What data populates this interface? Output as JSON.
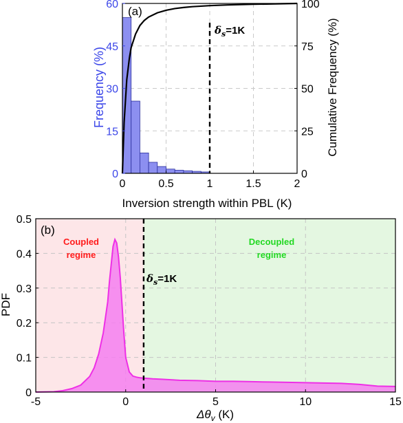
{
  "colors": {
    "bar_fill": "#8c8ff0",
    "bar_edge": "#2a2f9c",
    "cumulative_line": "#000000",
    "left_axis_blue": "#3b46e8",
    "pdf_line": "#ee2fe6",
    "pdf_fill": "#f57ff0",
    "coupled_bg": "#fde6e8",
    "decoupled_bg": "#e4f7e1",
    "threshold_line": "#000000"
  },
  "chart_data": [
    {
      "type": "bar",
      "panel_label": "(a)",
      "xlabel": "Inversion strength within PBL (K)",
      "ylabel": "Frequency (%)",
      "y2label": "Cumulative Frequency (%)",
      "xlim": [
        0,
        2
      ],
      "ylim": [
        0,
        60
      ],
      "y2lim": [
        0,
        100
      ],
      "xticks": [
        "0",
        "0.5",
        "1",
        "1.5",
        "2"
      ],
      "xtick_values": [
        0,
        0.5,
        1,
        1.5,
        2
      ],
      "yticks": [
        "0",
        "15",
        "30",
        "45",
        "60"
      ],
      "ytick_values": [
        0,
        15,
        30,
        45,
        60
      ],
      "y2ticks": [
        "0",
        "25",
        "50",
        "75",
        "100"
      ],
      "y2tick_values": [
        0,
        25,
        50,
        75,
        100
      ],
      "grid": true,
      "bin_edges": [
        0,
        0.1,
        0.2,
        0.3,
        0.4,
        0.5,
        0.6,
        0.7,
        0.8,
        0.9,
        1.0
      ],
      "values": [
        55,
        25.5,
        7.2,
        3.9,
        2.4,
        1.5,
        1.1,
        0.9,
        0.7,
        0.5
      ],
      "cumulative": {
        "x": [
          0,
          0.02,
          0.05,
          0.08,
          0.1,
          0.15,
          0.2,
          0.25,
          0.3,
          0.4,
          0.5,
          0.6,
          0.7,
          0.8,
          1.0,
          1.2,
          1.5,
          1.8,
          2.0
        ],
        "y": [
          0,
          30,
          55,
          68,
          74,
          82,
          87,
          90,
          92,
          94.5,
          96,
          97,
          97.6,
          98.1,
          98.7,
          99.1,
          99.5,
          99.8,
          100
        ]
      },
      "threshold": {
        "x": 1,
        "label_symbol": "δ",
        "label_sub": "s",
        "label_rest": "=1K"
      }
    },
    {
      "type": "area",
      "panel_label": "(b)",
      "xlabel_symbol": "Δθ",
      "xlabel_sub": "v",
      "xlabel_rest": " (K)",
      "ylabel": "PDF",
      "xlim": [
        -5,
        15
      ],
      "ylim": [
        0,
        0.5
      ],
      "xticks": [
        "-5",
        "0",
        "5",
        "10",
        "15"
      ],
      "xtick_values": [
        -5,
        0,
        5,
        10,
        15
      ],
      "yticks": [
        "0",
        "0.1",
        "0.2",
        "0.3",
        "0.4",
        "0.5"
      ],
      "ytick_values": [
        0,
        0.1,
        0.2,
        0.3,
        0.4,
        0.5
      ],
      "grid": true,
      "x": [
        -5,
        -4,
        -3.5,
        -3,
        -2.5,
        -2,
        -1.75,
        -1.5,
        -1.25,
        -1,
        -0.9,
        -0.8,
        -0.7,
        -0.6,
        -0.5,
        -0.4,
        -0.3,
        -0.2,
        -0.1,
        0,
        0.2,
        0.4,
        0.6,
        0.8,
        1.0,
        1.5,
        2,
        3,
        4,
        5,
        6,
        7,
        8,
        9,
        10,
        11,
        12,
        13,
        14,
        15
      ],
      "y": [
        0,
        0.001,
        0.004,
        0.01,
        0.02,
        0.045,
        0.07,
        0.11,
        0.17,
        0.26,
        0.32,
        0.37,
        0.42,
        0.44,
        0.43,
        0.39,
        0.33,
        0.25,
        0.17,
        0.1,
        0.058,
        0.046,
        0.043,
        0.041,
        0.04,
        0.038,
        0.037,
        0.034,
        0.033,
        0.031,
        0.031,
        0.03,
        0.029,
        0.028,
        0.027,
        0.026,
        0.025,
        0.022,
        0.017,
        0.016
      ],
      "threshold": {
        "x": 1,
        "label_symbol": "δ",
        "label_sub": "s",
        "label_rest": "=1K"
      },
      "regions": [
        {
          "name": "coupled",
          "x_from": -5,
          "x_to": 1,
          "label_lines": [
            "Coupled",
            "regime"
          ]
        },
        {
          "name": "decoupled",
          "x_from": 1,
          "x_to": 15,
          "label_lines": [
            "Decoupled",
            "regime"
          ]
        }
      ]
    }
  ]
}
